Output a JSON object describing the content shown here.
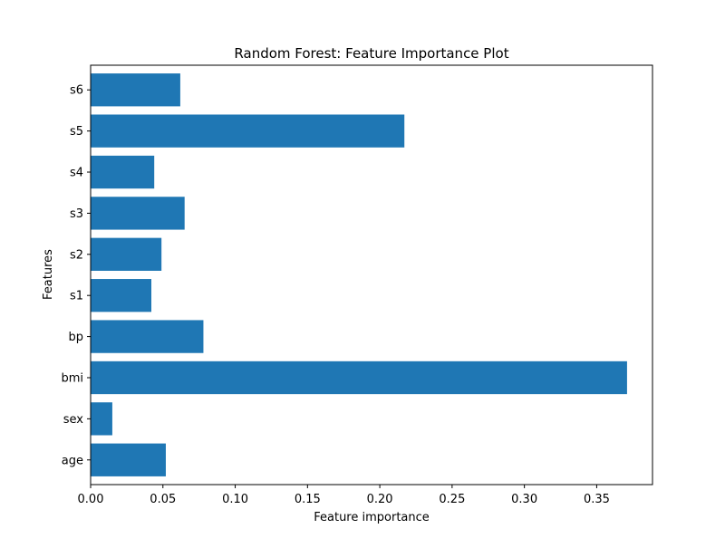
{
  "chart_data": {
    "type": "bar",
    "orientation": "horizontal",
    "title": "Random Forest: Feature Importance Plot",
    "xlabel": "Feature importance",
    "ylabel": "Features",
    "categories": [
      "age",
      "sex",
      "bmi",
      "bp",
      "s1",
      "s2",
      "s3",
      "s4",
      "s5",
      "s6"
    ],
    "values": [
      0.052,
      0.015,
      0.371,
      0.078,
      0.042,
      0.049,
      0.065,
      0.044,
      0.217,
      0.062
    ],
    "xlim": [
      0,
      0.3886
    ],
    "xticks": [
      "0.00",
      "0.05",
      "0.10",
      "0.15",
      "0.20",
      "0.25",
      "0.30",
      "0.35"
    ],
    "bar_color": "#1f77b4",
    "grid": false,
    "legend": "none"
  }
}
